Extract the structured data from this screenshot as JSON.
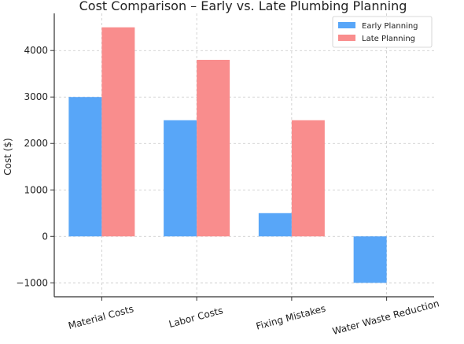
{
  "chart_data": {
    "type": "bar",
    "title": "Cost Comparison – Early vs. Late Plumbing Planning",
    "xlabel": "",
    "ylabel": "Cost ($)",
    "categories": [
      "Material Costs",
      "Labor Costs",
      "Fixing Mistakes",
      "Water Waste Reduction"
    ],
    "series": [
      {
        "name": "Early Planning",
        "values": [
          3000,
          2500,
          500,
          -1000
        ],
        "color": "#58a6f8"
      },
      {
        "name": "Late Planning",
        "values": [
          4500,
          3800,
          2500,
          0
        ],
        "color": "#f98d8d"
      }
    ],
    "yticks": [
      -1000,
      0,
      1000,
      2000,
      3000,
      4000
    ],
    "ytick_labels": [
      "−1000",
      "0",
      "1000",
      "2000",
      "3000",
      "4000"
    ],
    "ylim": [
      -1300,
      4800
    ],
    "grid": true,
    "legend_position": "top-right"
  }
}
